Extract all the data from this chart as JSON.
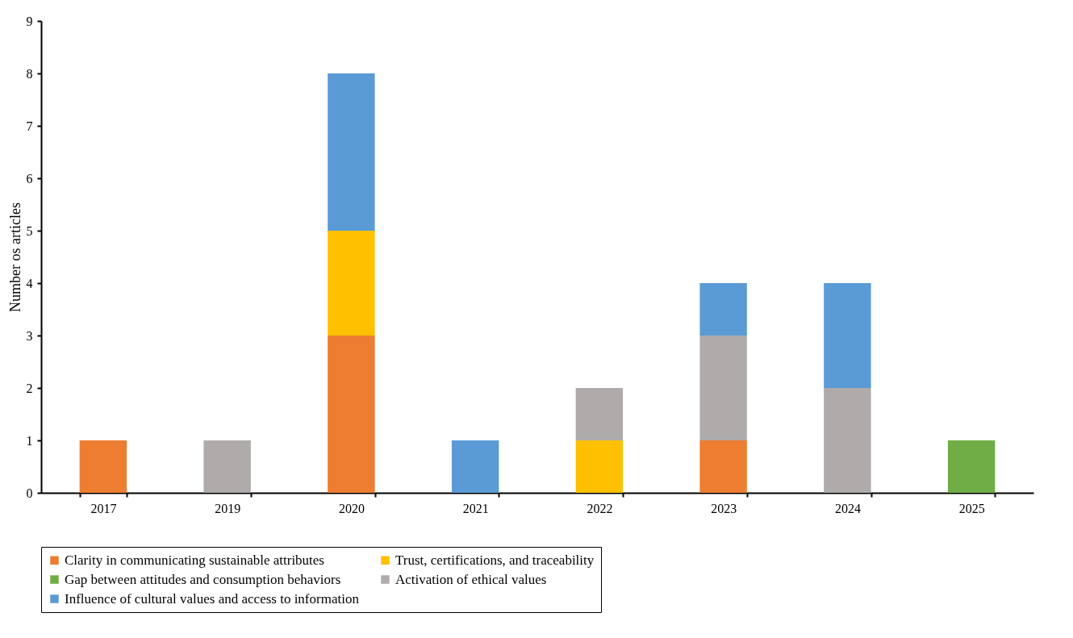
{
  "chart_data": {
    "type": "bar",
    "stacked": true,
    "ylabel": "Number os articles",
    "categories": [
      "2017",
      "2019",
      "2020",
      "2021",
      "2022",
      "2023",
      "2024",
      "2025"
    ],
    "ylim": [
      0,
      9
    ],
    "yticks": [
      0,
      1,
      2,
      3,
      4,
      5,
      6,
      7,
      8,
      9
    ],
    "grid": false,
    "legend": "bottom",
    "series": [
      {
        "name": "Clarity in communicating sustainable attributes",
        "color": "#ed7d31",
        "values": [
          1,
          null,
          3,
          null,
          null,
          1,
          null,
          null
        ]
      },
      {
        "name": "Trust, certifications, and traceability",
        "color": "#ffc000",
        "values": [
          null,
          null,
          2,
          null,
          1,
          null,
          null,
          null
        ]
      },
      {
        "name": "Gap between attitudes and consumption behaviors",
        "color": "#70ad47",
        "values": [
          null,
          null,
          null,
          null,
          null,
          null,
          null,
          1
        ]
      },
      {
        "name": "Activation of ethical values",
        "color": "#afabab",
        "values": [
          null,
          1,
          null,
          null,
          1,
          2,
          2,
          null
        ]
      },
      {
        "name": "Influence of cultural values and access to information",
        "color": "#5b9bd5",
        "values": [
          null,
          null,
          3,
          1,
          null,
          1,
          2,
          null
        ]
      }
    ]
  }
}
